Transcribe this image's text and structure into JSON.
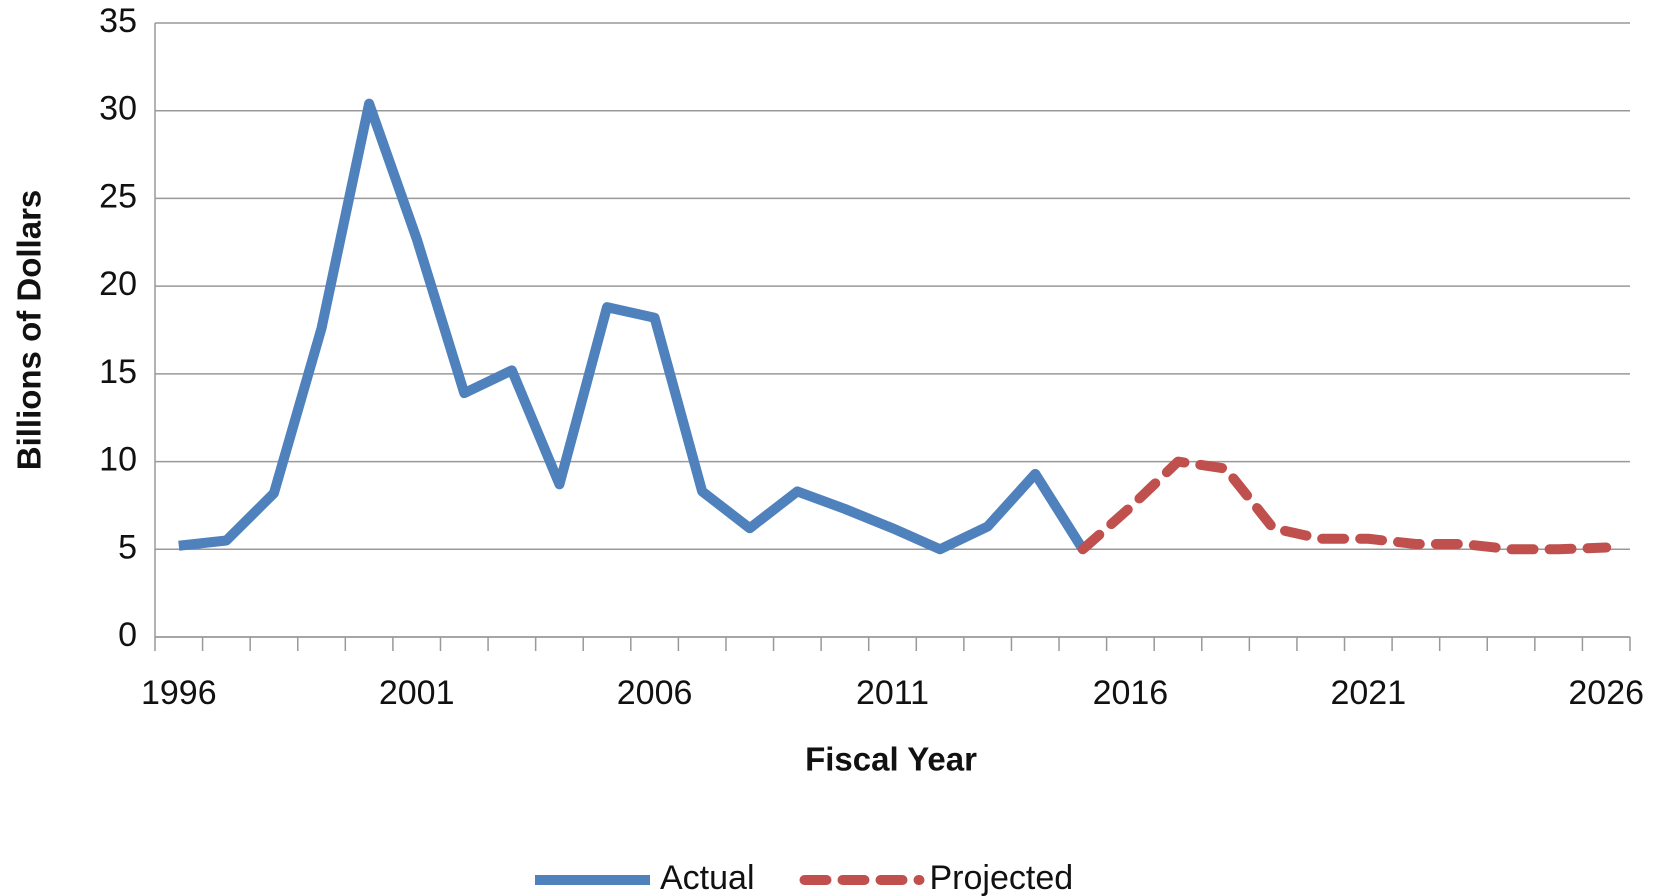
{
  "chart_data": {
    "type": "line",
    "x_label": "Fiscal Year",
    "y_label": "Billions of Dollars",
    "categories": [
      "1996",
      null,
      null,
      null,
      null,
      "2001",
      null,
      null,
      null,
      null,
      "2006",
      null,
      null,
      null,
      null,
      "2011",
      null,
      null,
      null,
      null,
      "2016",
      null,
      null,
      null,
      null,
      "2021",
      null,
      null,
      null,
      null,
      "2026"
    ],
    "series": [
      {
        "name": "Actual",
        "color": "#4f81bd",
        "line_style": "solid",
        "values": [
          5.2,
          5.5,
          8.2,
          17.6,
          30.4,
          22.7,
          13.9,
          15.2,
          8.7,
          18.8,
          18.2,
          8.3,
          6.2,
          8.3,
          7.3,
          6.2,
          5.0,
          6.3,
          9.3,
          5.0,
          null,
          null,
          null,
          null,
          null,
          null,
          null,
          null,
          null,
          null,
          null
        ]
      },
      {
        "name": "Projected",
        "color": "#c0504d",
        "line_style": "dashed",
        "values": [
          null,
          null,
          null,
          null,
          null,
          null,
          null,
          null,
          null,
          null,
          null,
          null,
          null,
          null,
          null,
          null,
          null,
          null,
          null,
          5.0,
          7.4,
          10.0,
          9.6,
          6.2,
          5.6,
          5.6,
          5.3,
          5.3,
          5.0,
          5.0,
          5.1
        ]
      }
    ],
    "ylim": [
      0,
      35
    ],
    "yticks": [
      0,
      5,
      10,
      15,
      20,
      25,
      30,
      35
    ],
    "grid": true,
    "legend": "bottom"
  }
}
